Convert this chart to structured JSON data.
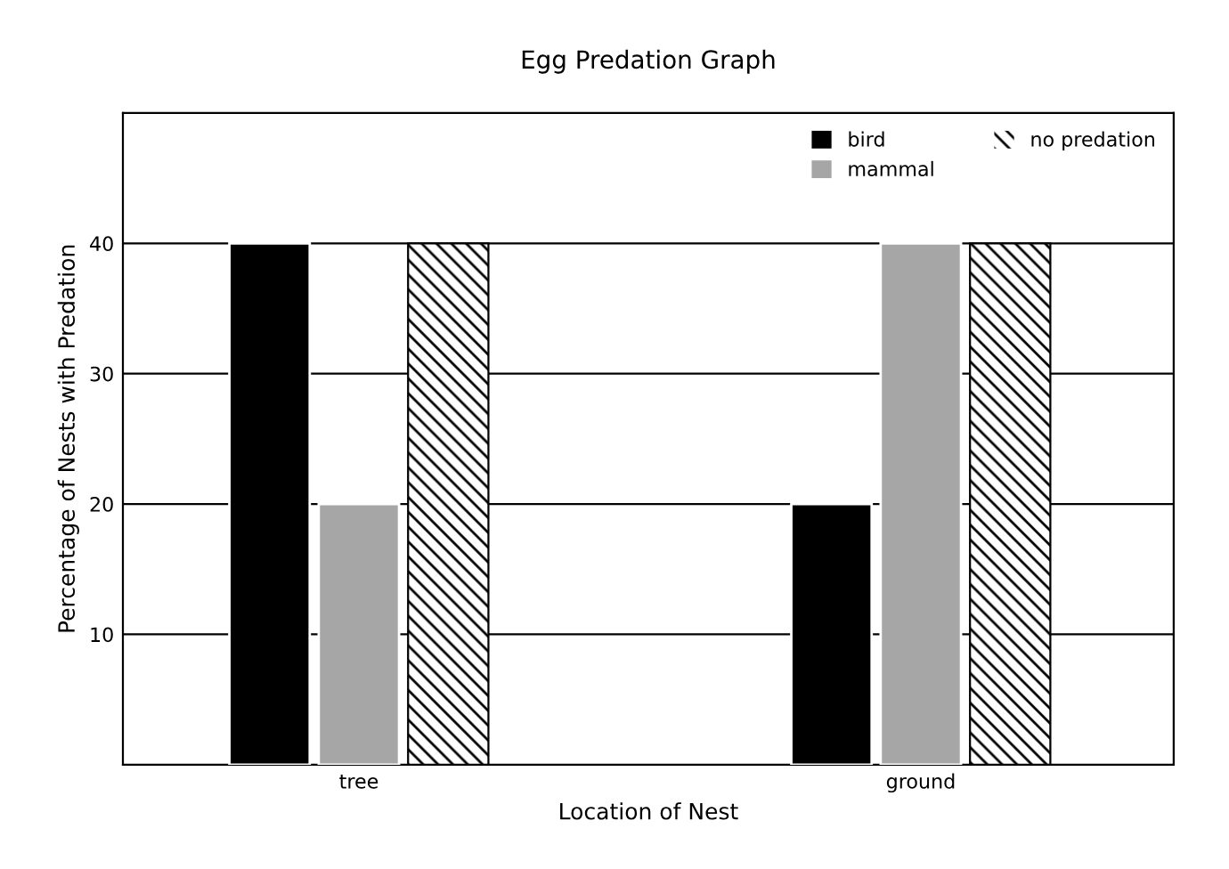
{
  "chart_data": {
    "type": "bar",
    "title": "Egg Predation Graph",
    "xlabel": "Location of Nest",
    "ylabel": "Percentage of Nests with Predation",
    "categories": [
      "tree",
      "ground"
    ],
    "series": [
      {
        "name": "bird",
        "color": "#000000",
        "values": [
          40,
          20
        ]
      },
      {
        "name": "mammal",
        "color": "#a6a6a6",
        "values": [
          20,
          40
        ]
      },
      {
        "name": "no predation",
        "color": "#000000",
        "values": [
          40,
          40
        ]
      }
    ],
    "ylim": [
      0,
      50
    ],
    "yticks": [
      10,
      20,
      30,
      40
    ],
    "grid": "y",
    "legend": "top right"
  }
}
